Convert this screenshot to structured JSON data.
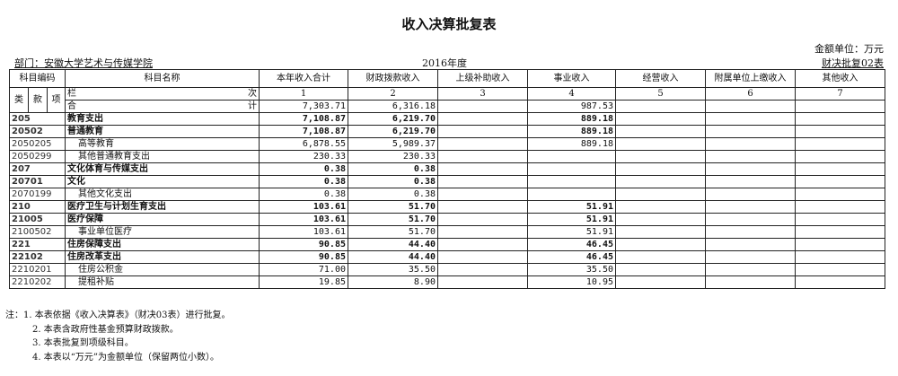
{
  "title": "收入决算批复表",
  "unit": "金额单位：万元",
  "form_no": "财决批复02表",
  "department": "部门：安徽大学艺术与传媒学院",
  "year": "2016年度",
  "headers": {
    "code": "科目编码",
    "name": "科目名称",
    "cols": [
      "本年收入合计",
      "财政拨款收入",
      "上级补助收入",
      "事业收入",
      "经营收入",
      "附属单位上缴收入",
      "其他收入"
    ],
    "lei": "类",
    "kuan": "款",
    "xiang": "项",
    "lan": "栏",
    "ci": "次",
    "he": "合",
    "ji": "计",
    "col_nums": [
      "1",
      "2",
      "3",
      "4",
      "5",
      "6",
      "7"
    ]
  },
  "total": [
    "7,303.71",
    "6,316.18",
    "",
    "987.53",
    "",
    "",
    ""
  ],
  "rows": [
    {
      "code": "205",
      "name": "教育支出",
      "bold": true,
      "v": [
        "7,108.87",
        "6,219.70",
        "",
        "889.18",
        "",
        "",
        ""
      ]
    },
    {
      "code": "20502",
      "name": "普通教育",
      "bold": true,
      "v": [
        "7,108.87",
        "6,219.70",
        "",
        "889.18",
        "",
        "",
        ""
      ]
    },
    {
      "code": "2050205",
      "name": "高等教育",
      "bold": false,
      "v": [
        "6,878.55",
        "5,989.37",
        "",
        "889.18",
        "",
        "",
        ""
      ]
    },
    {
      "code": "2050299",
      "name": "其他普通教育支出",
      "bold": false,
      "v": [
        "230.33",
        "230.33",
        "",
        "",
        "",
        "",
        ""
      ]
    },
    {
      "code": "207",
      "name": "文化体育与传媒支出",
      "bold": true,
      "v": [
        "0.38",
        "0.38",
        "",
        "",
        "",
        "",
        ""
      ]
    },
    {
      "code": "20701",
      "name": "文化",
      "bold": true,
      "v": [
        "0.38",
        "0.38",
        "",
        "",
        "",
        "",
        ""
      ]
    },
    {
      "code": "2070199",
      "name": "其他文化支出",
      "bold": false,
      "v": [
        "0.38",
        "0.38",
        "",
        "",
        "",
        "",
        ""
      ]
    },
    {
      "code": "210",
      "name": "医疗卫生与计划生育支出",
      "bold": true,
      "v": [
        "103.61",
        "51.70",
        "",
        "51.91",
        "",
        "",
        ""
      ]
    },
    {
      "code": "21005",
      "name": "医疗保障",
      "bold": true,
      "v": [
        "103.61",
        "51.70",
        "",
        "51.91",
        "",
        "",
        ""
      ]
    },
    {
      "code": "2100502",
      "name": "事业单位医疗",
      "bold": false,
      "v": [
        "103.61",
        "51.70",
        "",
        "51.91",
        "",
        "",
        ""
      ]
    },
    {
      "code": "221",
      "name": "住房保障支出",
      "bold": true,
      "v": [
        "90.85",
        "44.40",
        "",
        "46.45",
        "",
        "",
        ""
      ]
    },
    {
      "code": "22102",
      "name": "住房改革支出",
      "bold": true,
      "v": [
        "90.85",
        "44.40",
        "",
        "46.45",
        "",
        "",
        ""
      ]
    },
    {
      "code": "2210201",
      "name": "住房公积金",
      "bold": false,
      "v": [
        "71.00",
        "35.50",
        "",
        "35.50",
        "",
        "",
        ""
      ]
    },
    {
      "code": "2210202",
      "name": "提租补贴",
      "bold": false,
      "v": [
        "19.85",
        "8.90",
        "",
        "10.95",
        "",
        "",
        ""
      ]
    }
  ],
  "notes": [
    "注：1. 本表依据《收入决算表》（财决03表）进行批复。",
    "2. 本表含政府性基金预算财政拨款。",
    "3. 本表批复到项级科目。",
    "4. 本表以“万元”为金额单位（保留两位小数）。"
  ]
}
